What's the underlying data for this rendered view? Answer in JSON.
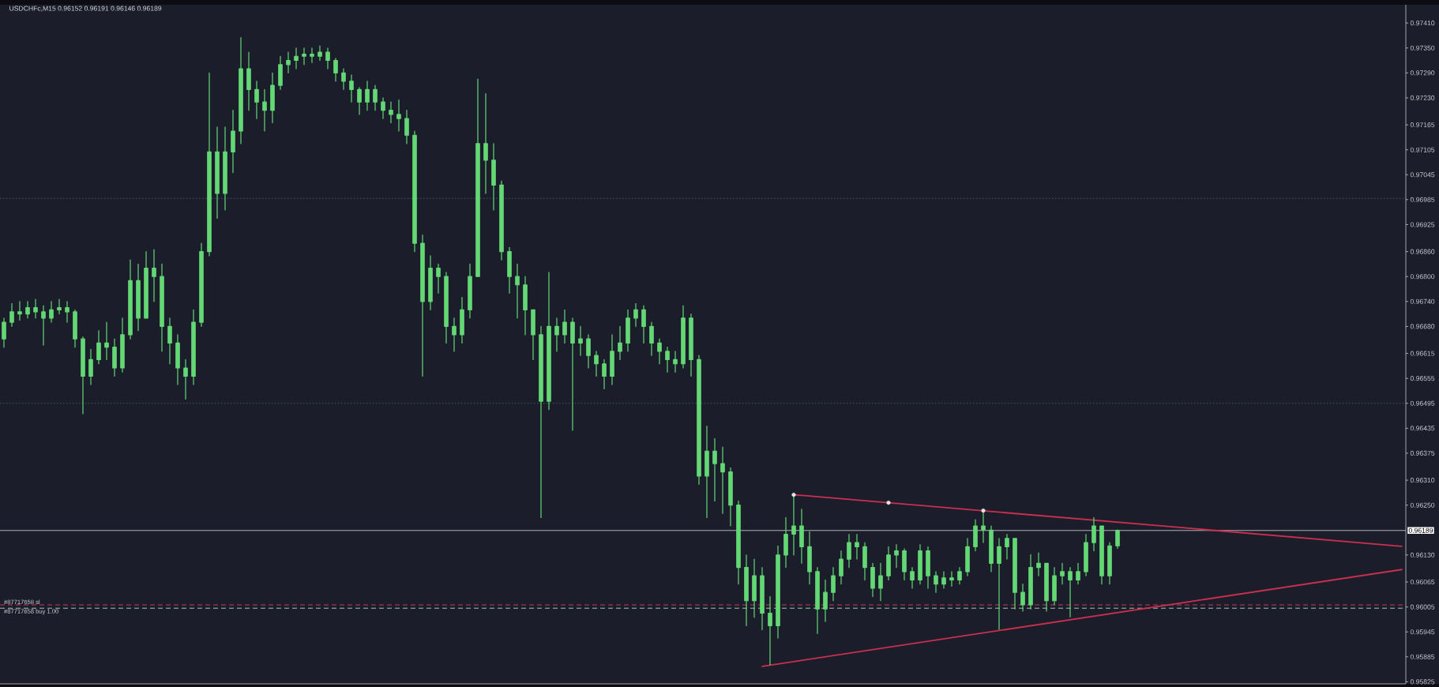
{
  "chart_data": {
    "type": "candlestick",
    "title": "USDCHFc,M15 0.96152 0.96191 0.96146 0.96189",
    "color": "#63d874",
    "categories": [
      null,
      null,
      null,
      null,
      null,
      null,
      null,
      null,
      null,
      null,
      null,
      null,
      null,
      null,
      null,
      null,
      null,
      null,
      null,
      null,
      null,
      null,
      null,
      null,
      null,
      null,
      null,
      null,
      null,
      null,
      null,
      null,
      null,
      null,
      null,
      null,
      null,
      null,
      null,
      null,
      null,
      null,
      null,
      null,
      null,
      null,
      null,
      null,
      null,
      null,
      null,
      null,
      null,
      null,
      null,
      null,
      null,
      null,
      null,
      null,
      null,
      null,
      null,
      null,
      null,
      null,
      null,
      null,
      null,
      null,
      null,
      null,
      null,
      null,
      null,
      null,
      null,
      null,
      null,
      null,
      null,
      null,
      null,
      null,
      null,
      null,
      null,
      null,
      null,
      null,
      null,
      null,
      null,
      null,
      null,
      null,
      null,
      null,
      null,
      null,
      null,
      null,
      null,
      null,
      null,
      null,
      null,
      null,
      null,
      null,
      null,
      null,
      null,
      null,
      null,
      null,
      null,
      null,
      null,
      null,
      null,
      null,
      null,
      null,
      null,
      null,
      null,
      null,
      null,
      null,
      null,
      null,
      null,
      null,
      null,
      null,
      null,
      null,
      null,
      null,
      null,
      null,
      null,
      null,
      null,
      null,
      null,
      null,
      null,
      null,
      null,
      null,
      null,
      null,
      null,
      null,
      null,
      null,
      null,
      null,
      null,
      null,
      null,
      null,
      null,
      null,
      null,
      null,
      null,
      null,
      null,
      null,
      null,
      null,
      null,
      null,
      null,
      null
    ],
    "ohlc": [
      [
        0.9665,
        0.967,
        0.9663,
        0.9669
      ],
      [
        0.9669,
        0.96735,
        0.9668,
        0.96715
      ],
      [
        0.96715,
        0.9674,
        0.96695,
        0.9671
      ],
      [
        0.9671,
        0.9674,
        0.967,
        0.96725
      ],
      [
        0.96725,
        0.96745,
        0.967,
        0.96715
      ],
      [
        0.96715,
        0.9673,
        0.96635,
        0.967
      ],
      [
        0.967,
        0.9674,
        0.9669,
        0.9672
      ],
      [
        0.9672,
        0.96745,
        0.9671,
        0.96725
      ],
      [
        0.96725,
        0.9674,
        0.9669,
        0.96715
      ],
      [
        0.96715,
        0.9672,
        0.9663,
        0.9665
      ],
      [
        0.9665,
        0.96655,
        0.9647,
        0.9656
      ],
      [
        0.9656,
        0.96625,
        0.9654,
        0.966
      ],
      [
        0.966,
        0.9667,
        0.9659,
        0.9664
      ],
      [
        0.9664,
        0.9669,
        0.966,
        0.9663
      ],
      [
        0.9663,
        0.9665,
        0.9656,
        0.9658
      ],
      [
        0.9658,
        0.967,
        0.9657,
        0.9666
      ],
      [
        0.9666,
        0.9684,
        0.9665,
        0.9679
      ],
      [
        0.9679,
        0.9683,
        0.9667,
        0.967
      ],
      [
        0.967,
        0.9686,
        0.967,
        0.9682
      ],
      [
        0.9682,
        0.96865,
        0.9674,
        0.968
      ],
      [
        0.968,
        0.9683,
        0.9662,
        0.9668
      ],
      [
        0.9668,
        0.967,
        0.9659,
        0.9664
      ],
      [
        0.9664,
        0.9666,
        0.9654,
        0.9658
      ],
      [
        0.9658,
        0.966,
        0.96505,
        0.9656
      ],
      [
        0.9656,
        0.9672,
        0.9654,
        0.9669
      ],
      [
        0.9669,
        0.9688,
        0.9668,
        0.9686
      ],
      [
        0.9686,
        0.9729,
        0.9685,
        0.971
      ],
      [
        0.971,
        0.9716,
        0.9694,
        0.97
      ],
      [
        0.97,
        0.9716,
        0.9696,
        0.971
      ],
      [
        0.971,
        0.972,
        0.9705,
        0.9715
      ],
      [
        0.9715,
        0.97375,
        0.9712,
        0.973
      ],
      [
        0.973,
        0.9734,
        0.972,
        0.9725
      ],
      [
        0.9725,
        0.9727,
        0.9718,
        0.9722
      ],
      [
        0.9722,
        0.9725,
        0.9715,
        0.972
      ],
      [
        0.972,
        0.9729,
        0.9717,
        0.9726
      ],
      [
        0.9726,
        0.9733,
        0.9725,
        0.9731
      ],
      [
        0.9731,
        0.9734,
        0.9729,
        0.9732
      ],
      [
        0.9732,
        0.9735,
        0.973,
        0.9733
      ],
      [
        0.9733,
        0.9735,
        0.9731,
        0.97335
      ],
      [
        0.97335,
        0.9735,
        0.97315,
        0.9733
      ],
      [
        0.9733,
        0.97355,
        0.9732,
        0.9734
      ],
      [
        0.9734,
        0.9735,
        0.973,
        0.9732
      ],
      [
        0.9732,
        0.97325,
        0.9727,
        0.9729
      ],
      [
        0.9729,
        0.973,
        0.9725,
        0.9727
      ],
      [
        0.9727,
        0.97285,
        0.9722,
        0.9725
      ],
      [
        0.9725,
        0.97255,
        0.9719,
        0.9722
      ],
      [
        0.9722,
        0.9727,
        0.972,
        0.9725
      ],
      [
        0.9725,
        0.9726,
        0.972,
        0.9722
      ],
      [
        0.9722,
        0.9723,
        0.9718,
        0.972
      ],
      [
        0.972,
        0.9722,
        0.9717,
        0.9719
      ],
      [
        0.9719,
        0.97225,
        0.9715,
        0.9718
      ],
      [
        0.9718,
        0.972,
        0.9712,
        0.9714
      ],
      [
        0.9714,
        0.9715,
        0.9686,
        0.9688
      ],
      [
        0.9688,
        0.969,
        0.9656,
        0.9674
      ],
      [
        0.9674,
        0.9685,
        0.9672,
        0.9682
      ],
      [
        0.9682,
        0.9683,
        0.9676,
        0.968
      ],
      [
        0.968,
        0.9681,
        0.9664,
        0.9668
      ],
      [
        0.9668,
        0.967,
        0.9662,
        0.9666
      ],
      [
        0.9666,
        0.9675,
        0.9664,
        0.9672
      ],
      [
        0.9672,
        0.9683,
        0.967,
        0.968
      ],
      [
        0.968,
        0.97275,
        0.968,
        0.9712
      ],
      [
        0.9712,
        0.9724,
        0.97,
        0.9708
      ],
      [
        0.9708,
        0.9712,
        0.9696,
        0.9702
      ],
      [
        0.9702,
        0.9703,
        0.9684,
        0.9686
      ],
      [
        0.9686,
        0.9687,
        0.9676,
        0.968
      ],
      [
        0.968,
        0.9683,
        0.967,
        0.9678
      ],
      [
        0.9678,
        0.968,
        0.9666,
        0.9672
      ],
      [
        0.9672,
        0.9672,
        0.966,
        0.9666
      ],
      [
        0.9666,
        0.9668,
        0.9622,
        0.965
      ],
      [
        0.965,
        0.9681,
        0.9648,
        0.9668
      ],
      [
        0.9668,
        0.967,
        0.9662,
        0.9666
      ],
      [
        0.9666,
        0.9672,
        0.9664,
        0.9669
      ],
      [
        0.9669,
        0.967,
        0.9643,
        0.9664
      ],
      [
        0.9664,
        0.9668,
        0.9661,
        0.9665
      ],
      [
        0.9665,
        0.9666,
        0.9658,
        0.9661
      ],
      [
        0.9661,
        0.9662,
        0.9656,
        0.9659
      ],
      [
        0.9659,
        0.966,
        0.9653,
        0.9656
      ],
      [
        0.9656,
        0.9666,
        0.9654,
        0.9662
      ],
      [
        0.9662,
        0.9668,
        0.966,
        0.9664
      ],
      [
        0.9664,
        0.9672,
        0.9662,
        0.967
      ],
      [
        0.967,
        0.96735,
        0.9668,
        0.9672
      ],
      [
        0.9672,
        0.9673,
        0.9664,
        0.9668
      ],
      [
        0.9668,
        0.9669,
        0.9661,
        0.9664
      ],
      [
        0.9664,
        0.9665,
        0.9659,
        0.9662
      ],
      [
        0.9662,
        0.9663,
        0.9657,
        0.966
      ],
      [
        0.966,
        0.9662,
        0.9657,
        0.9659
      ],
      [
        0.9659,
        0.9673,
        0.9658,
        0.967
      ],
      [
        0.967,
        0.9671,
        0.9656,
        0.966
      ],
      [
        0.966,
        0.9661,
        0.963,
        0.9632
      ],
      [
        0.9632,
        0.9644,
        0.9622,
        0.9638
      ],
      [
        0.9638,
        0.9641,
        0.9626,
        0.9635
      ],
      [
        0.9635,
        0.9639,
        0.9623,
        0.9633
      ],
      [
        0.9633,
        0.9634,
        0.962,
        0.9625
      ],
      [
        0.9625,
        0.9626,
        0.9606,
        0.961
      ],
      [
        0.961,
        0.9613,
        0.9596,
        0.9602
      ],
      [
        0.9602,
        0.9612,
        0.9598,
        0.9608
      ],
      [
        0.9608,
        0.961,
        0.9595,
        0.9599
      ],
      [
        0.9599,
        0.9603,
        0.95866,
        0.9596
      ],
      [
        0.9596,
        0.96152,
        0.9593,
        0.9613
      ],
      [
        0.9613,
        0.9622,
        0.961,
        0.9618
      ],
      [
        0.9618,
        0.96274,
        0.9613,
        0.962
      ],
      [
        0.962,
        0.9624,
        0.9611,
        0.9615
      ],
      [
        0.9615,
        0.96186,
        0.9606,
        0.9609
      ],
      [
        0.9609,
        0.961,
        0.95941,
        0.96
      ],
      [
        0.96,
        0.9607,
        0.9597,
        0.9604
      ],
      [
        0.9604,
        0.961,
        0.9602,
        0.9608
      ],
      [
        0.9608,
        0.9614,
        0.9606,
        0.9612
      ],
      [
        0.9612,
        0.9618,
        0.961,
        0.9616
      ],
      [
        0.9616,
        0.9618,
        0.9612,
        0.9615
      ],
      [
        0.9615,
        0.9616,
        0.9607,
        0.961
      ],
      [
        0.961,
        0.9611,
        0.9603,
        0.9605
      ],
      [
        0.9605,
        0.9611,
        0.9602,
        0.9608
      ],
      [
        0.9608,
        0.9615,
        0.9607,
        0.9613
      ],
      [
        0.9613,
        0.96155,
        0.961,
        0.9614
      ],
      [
        0.9614,
        0.96145,
        0.9607,
        0.9609
      ],
      [
        0.9609,
        0.961,
        0.9605,
        0.9607
      ],
      [
        0.9607,
        0.96155,
        0.9606,
        0.9614
      ],
      [
        0.9614,
        0.9615,
        0.9605,
        0.9608
      ],
      [
        0.9608,
        0.9609,
        0.9604,
        0.9606
      ],
      [
        0.9606,
        0.9609,
        0.9605,
        0.96075
      ],
      [
        0.96075,
        0.9609,
        0.96055,
        0.9607
      ],
      [
        0.9607,
        0.961,
        0.9606,
        0.9609
      ],
      [
        0.9609,
        0.9617,
        0.9608,
        0.9615
      ],
      [
        0.9615,
        0.96215,
        0.9614,
        0.962
      ],
      [
        0.962,
        0.96235,
        0.9616,
        0.9619
      ],
      [
        0.9619,
        0.962,
        0.9609,
        0.9611
      ],
      [
        0.9611,
        0.9617,
        0.95951,
        0.9615
      ],
      [
        0.9615,
        0.9618,
        0.9612,
        0.9617
      ],
      [
        0.9617,
        0.9617,
        0.96,
        0.9604
      ],
      [
        0.9604,
        0.9606,
        0.95995,
        0.9601
      ],
      [
        0.9601,
        0.96131,
        0.96,
        0.961
      ],
      [
        0.961,
        0.96135,
        0.9608,
        0.9611
      ],
      [
        0.9611,
        0.9611,
        0.95995,
        0.9602
      ],
      [
        0.9602,
        0.961,
        0.9601,
        0.9608
      ],
      [
        0.9608,
        0.9611,
        0.9606,
        0.9609
      ],
      [
        0.9609,
        0.961,
        0.95981,
        0.9607
      ],
      [
        0.9607,
        0.9611,
        0.9606,
        0.9609
      ],
      [
        0.9609,
        0.9618,
        0.9608,
        0.9616
      ],
      [
        0.9616,
        0.9622,
        0.9614,
        0.962
      ],
      [
        0.962,
        0.962,
        0.9606,
        0.9608
      ],
      [
        0.9608,
        0.9616,
        0.9606,
        0.96152
      ],
      [
        0.96152,
        0.96191,
        0.96146,
        0.96189
      ],
      null,
      null,
      null,
      null,
      null,
      null,
      null,
      null,
      null,
      null,
      null,
      null,
      null,
      null,
      null,
      null,
      null,
      null,
      null,
      null,
      null,
      null,
      null,
      null,
      null,
      null,
      null,
      null,
      null,
      null,
      null,
      null,
      null,
      null,
      null,
      null
    ],
    "series": [
      {
        "type": "line",
        "color": "#c9304e",
        "values": [
          null,
          null,
          null,
          null,
          null,
          null,
          null,
          null,
          null,
          null,
          null,
          null,
          null,
          null,
          null,
          null,
          null,
          null,
          null,
          null,
          null,
          null,
          null,
          null,
          null,
          null,
          null,
          null,
          null,
          null,
          null,
          null,
          null,
          null,
          null,
          null,
          null,
          null,
          null,
          null,
          null,
          null,
          null,
          null,
          null,
          null,
          null,
          null,
          null,
          null,
          null,
          null,
          null,
          null,
          null,
          null,
          null,
          null,
          null,
          null,
          null,
          null,
          null,
          null,
          null,
          null,
          null,
          null,
          null,
          null,
          null,
          null,
          null,
          null,
          null,
          null,
          null,
          null,
          null,
          null,
          null,
          null,
          null,
          null,
          null,
          null,
          null,
          null,
          null,
          null,
          null,
          null,
          null,
          null,
          null,
          null,
          null,
          null,
          null,
          null,
          0.96275,
          null,
          null,
          null,
          null,
          null,
          null,
          null,
          null,
          null,
          null,
          null,
          null,
          null,
          null,
          null,
          null,
          null,
          null,
          null,
          null,
          null,
          null,
          null,
          null,
          null,
          null,
          null,
          null,
          null,
          null,
          null,
          null,
          null,
          null,
          null,
          null,
          null,
          null,
          null,
          null,
          null,
          null,
          null,
          null,
          null,
          null,
          null,
          null,
          null,
          null,
          null,
          null,
          null,
          null,
          null,
          null,
          null,
          null,
          null,
          null,
          null,
          null,
          null,
          null,
          null,
          null,
          null,
          null,
          null,
          null,
          null,
          null,
          null,
          null,
          null,
          null,
          0.96151
        ]
      },
      {
        "type": "line",
        "color": "#c9304e",
        "values": [
          null,
          null,
          null,
          null,
          null,
          null,
          null,
          null,
          null,
          null,
          null,
          null,
          null,
          null,
          null,
          null,
          null,
          null,
          null,
          null,
          null,
          null,
          null,
          null,
          null,
          null,
          null,
          null,
          null,
          null,
          null,
          null,
          null,
          null,
          null,
          null,
          null,
          null,
          null,
          null,
          null,
          null,
          null,
          null,
          null,
          null,
          null,
          null,
          null,
          null,
          null,
          null,
          null,
          null,
          null,
          null,
          null,
          null,
          null,
          null,
          null,
          null,
          null,
          null,
          null,
          null,
          null,
          null,
          null,
          null,
          null,
          null,
          null,
          null,
          null,
          null,
          null,
          null,
          null,
          null,
          null,
          null,
          null,
          null,
          null,
          null,
          null,
          null,
          null,
          null,
          null,
          null,
          null,
          null,
          null,
          null,
          0.95862,
          null,
          null,
          null,
          null,
          null,
          null,
          null,
          null,
          null,
          null,
          null,
          null,
          null,
          null,
          null,
          null,
          null,
          null,
          null,
          null,
          null,
          null,
          null,
          null,
          null,
          null,
          null,
          null,
          null,
          null,
          null,
          null,
          null,
          null,
          null,
          null,
          null,
          null,
          null,
          null,
          null,
          null,
          null,
          null,
          null,
          null,
          null,
          null,
          null,
          null,
          null,
          null,
          null,
          null,
          null,
          null,
          null,
          null,
          null,
          null,
          null,
          null,
          null,
          null,
          null,
          null,
          null,
          null,
          null,
          null,
          null,
          null,
          null,
          null,
          null,
          null,
          null,
          null,
          null,
          null,
          0.96095
        ]
      },
      {
        "type": "scatter",
        "color": "#e4e4e8",
        "marker": "circle",
        "values": [
          null,
          null,
          null,
          null,
          null,
          null,
          null,
          null,
          null,
          null,
          null,
          null,
          null,
          null,
          null,
          null,
          null,
          null,
          null,
          null,
          null,
          null,
          null,
          null,
          null,
          null,
          null,
          null,
          null,
          null,
          null,
          null,
          null,
          null,
          null,
          null,
          null,
          null,
          null,
          null,
          null,
          null,
          null,
          null,
          null,
          null,
          null,
          null,
          null,
          null,
          null,
          null,
          null,
          null,
          null,
          null,
          null,
          null,
          null,
          null,
          null,
          null,
          null,
          null,
          null,
          null,
          null,
          null,
          null,
          null,
          null,
          null,
          null,
          null,
          null,
          null,
          null,
          null,
          null,
          null,
          null,
          null,
          null,
          null,
          null,
          null,
          null,
          null,
          null,
          null,
          null,
          null,
          null,
          null,
          null,
          null,
          null,
          null,
          null,
          null,
          0.96275,
          null,
          null,
          null,
          null,
          null,
          null,
          null,
          null,
          null,
          null,
          null,
          0.96256,
          null,
          null,
          null,
          null,
          null,
          null,
          null,
          null,
          null,
          null,
          null,
          0.96237,
          null,
          null,
          null,
          null,
          null,
          null,
          null,
          null,
          null,
          null,
          null,
          null,
          null,
          null,
          null,
          null,
          null,
          null,
          null,
          null,
          null,
          null,
          null,
          null,
          null,
          null,
          null,
          null,
          null,
          null,
          null,
          null,
          null,
          null,
          null,
          null,
          null,
          null,
          null,
          null,
          null,
          null,
          null,
          null,
          null,
          null,
          null,
          null,
          null,
          null,
          null,
          null,
          null
        ]
      }
    ],
    "ref_lines": [
      {
        "axis": "y",
        "value": 0.96988,
        "color": "#3d6163",
        "line_style": "dotted"
      },
      {
        "axis": "y",
        "value": 0.96495,
        "color": "#3d6163",
        "line_style": "dotted"
      },
      {
        "axis": "y",
        "value": 0.96189,
        "label": "0.96189",
        "color": "#b4b4b8",
        "line_style": "solid"
      },
      {
        "axis": "y",
        "value": 0.9601,
        "label": "#87717658 sl",
        "color": "#c23a55",
        "line_style": "dashed"
      },
      {
        "axis": "y",
        "value": 0.96002,
        "label": "#87717658 buy 1.00",
        "color": "#9fc6b0",
        "line_style": "dashed"
      }
    ],
    "ylim": [
      0.9582,
      0.97454
    ],
    "yticks": [
      {
        "value": 0.9741,
        "label": "0.97410"
      },
      {
        "value": 0.9735,
        "label": "0.97350"
      },
      {
        "value": 0.9729,
        "label": "0.97290"
      },
      {
        "value": 0.9723,
        "label": "0.97230"
      },
      {
        "value": 0.97165,
        "label": "0.97165"
      },
      {
        "value": 0.97105,
        "label": "0.97105"
      },
      {
        "value": 0.97045,
        "label": "0.97045"
      },
      {
        "value": 0.96985,
        "label": "0.96985"
      },
      {
        "value": 0.96925,
        "label": "0.96925"
      },
      {
        "value": 0.9686,
        "label": "0.96860"
      },
      {
        "value": 0.968,
        "label": "0.96800"
      },
      {
        "value": 0.9674,
        "label": "0.96740"
      },
      {
        "value": 0.9668,
        "label": "0.96680"
      },
      {
        "value": 0.96615,
        "label": "0.96615"
      },
      {
        "value": 0.96555,
        "label": "0.96555"
      },
      {
        "value": 0.96495,
        "label": "0.96495"
      },
      {
        "value": 0.96435,
        "label": "0.96435"
      },
      {
        "value": 0.96375,
        "label": "0.96375"
      },
      {
        "value": 0.9631,
        "label": "0.96310"
      },
      {
        "value": 0.9625,
        "label": "0.96250"
      },
      {
        "value": 0.9613,
        "label": "0.96130"
      },
      {
        "value": 0.96065,
        "label": "0.96065"
      },
      {
        "value": 0.96005,
        "label": "0.96005"
      },
      {
        "value": 0.95945,
        "label": "0.95945"
      },
      {
        "value": 0.95885,
        "label": "0.95885"
      },
      {
        "value": 0.95825,
        "label": "0.95825"
      }
    ]
  }
}
